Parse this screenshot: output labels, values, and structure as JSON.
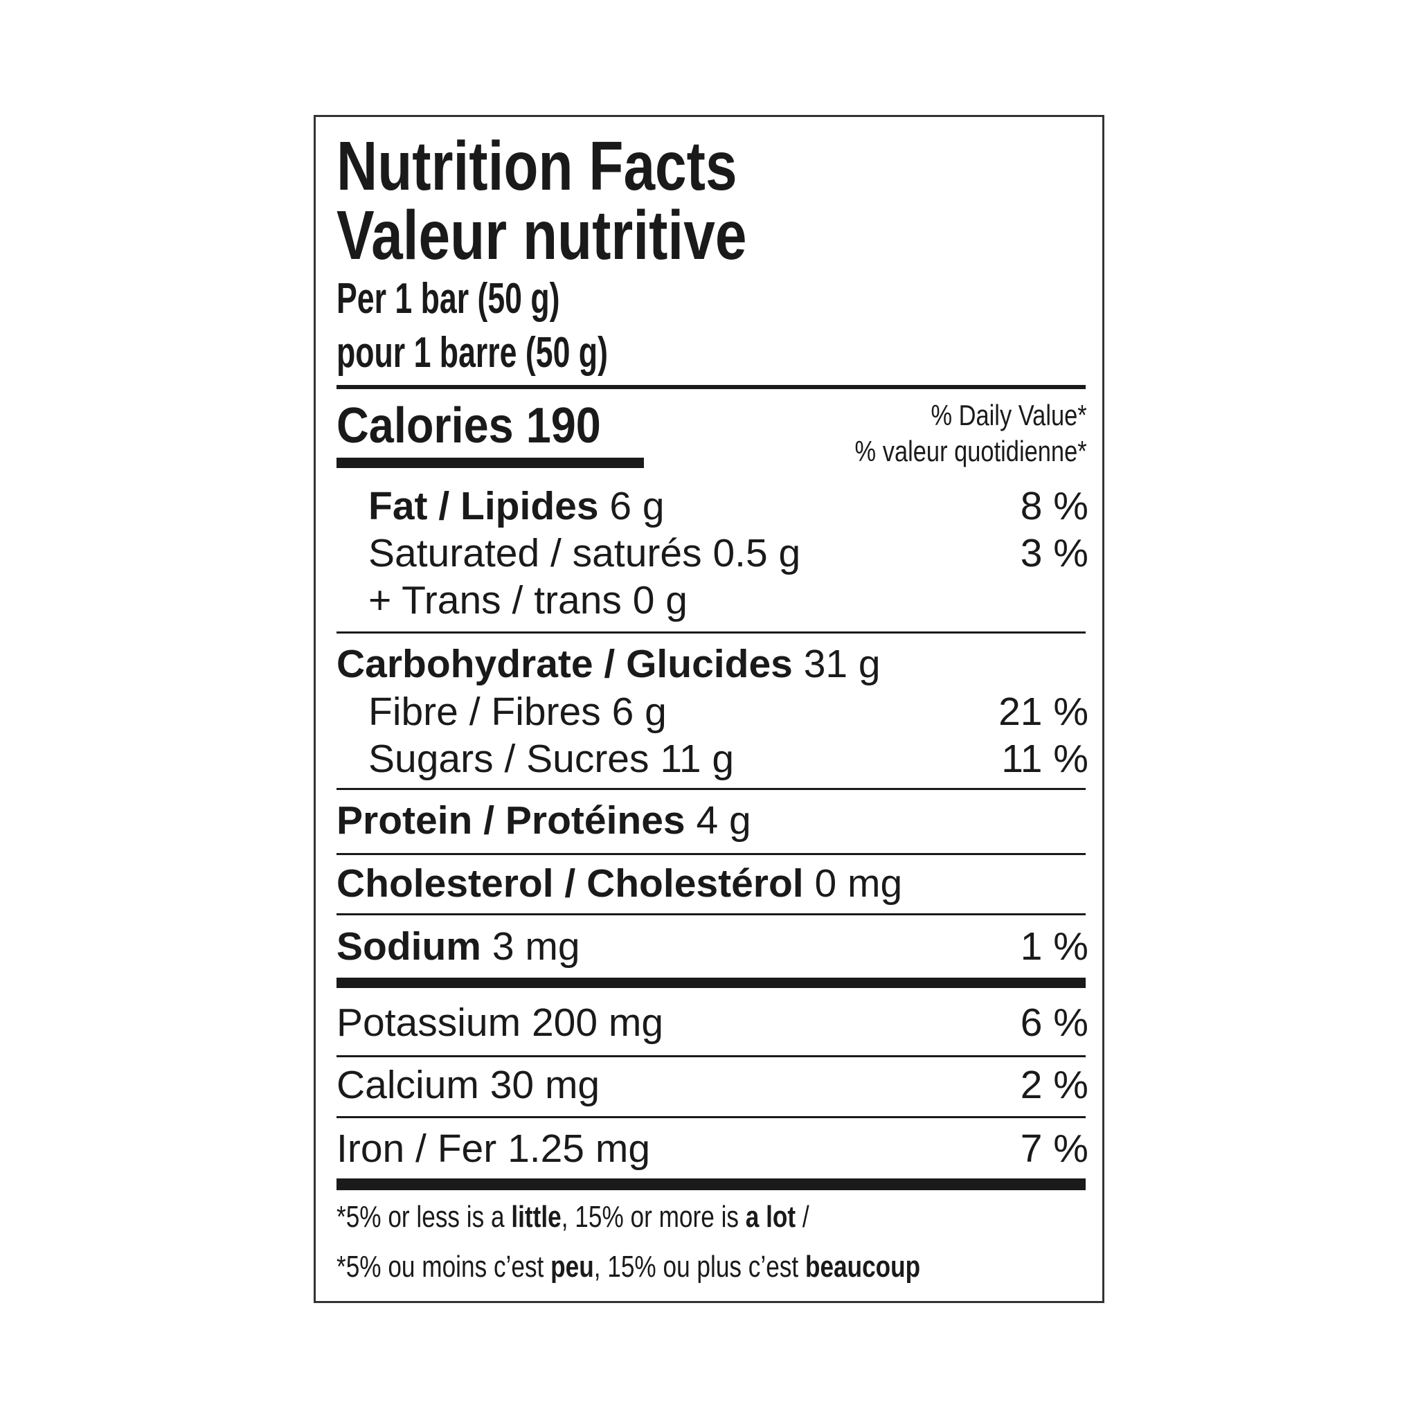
{
  "title_en": "Nutrition Facts",
  "title_fr": "Valeur nutritive",
  "serving_en": "Per 1 bar (50 g)",
  "serving_fr": "pour 1 barre (50 g)",
  "calories": "Calories 190",
  "dv_en": "% Daily Value*",
  "dv_fr": "% valeur quotidienne*",
  "rows": [
    {
      "label": "Fat / Lipides",
      "amount": "6 g",
      "dv": "8 %"
    },
    {
      "label": "Saturated / saturés 0.5 g",
      "dv": "3 %"
    },
    {
      "label": "+ Trans / trans 0 g"
    },
    {
      "label": "Carbohydrate / Glucides",
      "amount": "31 g"
    },
    {
      "label": "Fibre / Fibres 6 g",
      "dv": "21 %"
    },
    {
      "label": "Sugars / Sucres 11 g",
      "dv": "11 %"
    },
    {
      "label": "Protein / Protéines",
      "amount": "4 g"
    },
    {
      "label": "Cholesterol / Cholestérol",
      "amount": "0 mg"
    },
    {
      "label": "Sodium",
      "amount": "3 mg",
      "dv": "1 %"
    },
    {
      "label": "Potassium 200 mg",
      "dv": "6 %"
    },
    {
      "label": "Calcium 30 mg",
      "dv": "2 %"
    },
    {
      "label": "Iron / Fer 1.25 mg",
      "dv": "7 %"
    }
  ],
  "footnote_en": {
    "a": "*5% or less is a ",
    "b": "little",
    "c": ", 15% or more is ",
    "d": "a lot",
    "e": " /"
  },
  "footnote_fr": {
    "a": "*5% ou moins c’est ",
    "b": "peu",
    "c": ", 15% ou plus c’est ",
    "d": "beaucoup"
  }
}
